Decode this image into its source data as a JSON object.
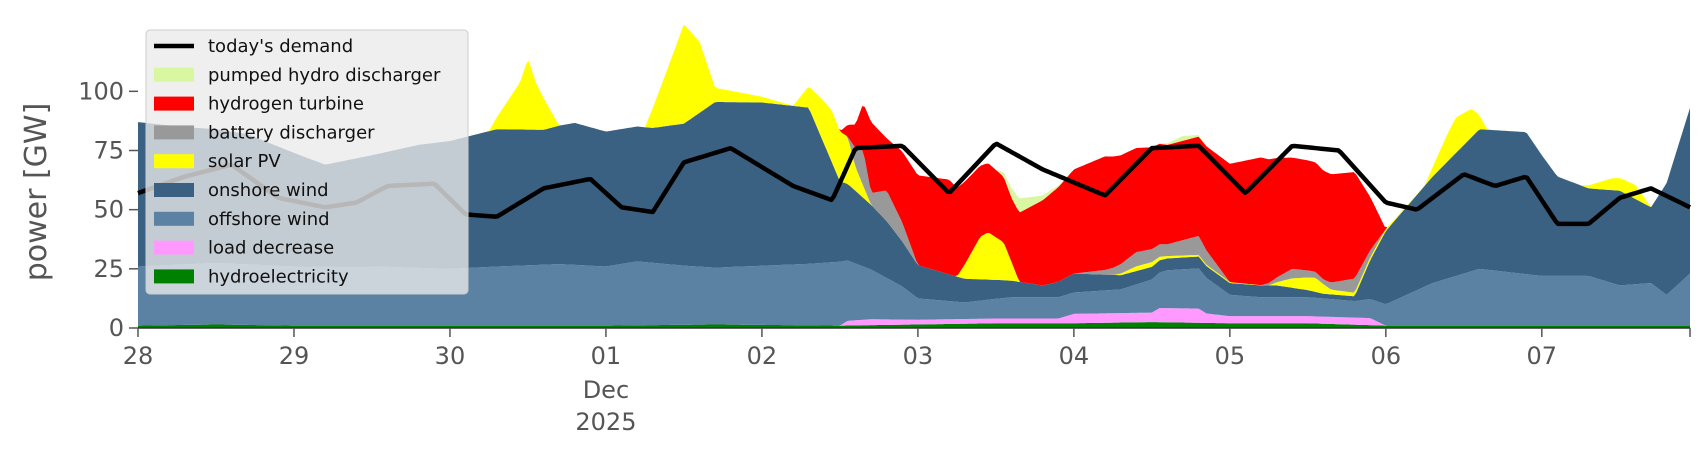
{
  "chart_data": {
    "type": "area",
    "ylabel": "power [GW]",
    "ylim": [
      0,
      120
    ],
    "yticks": [
      0,
      25,
      50,
      75,
      100
    ],
    "xlim": [
      0,
      9.95
    ],
    "xticks": [
      {
        "x": 0,
        "label": "28"
      },
      {
        "x": 1,
        "label": "29"
      },
      {
        "x": 2,
        "label": "30"
      },
      {
        "x": 3,
        "label": "01",
        "sub1": "Dec",
        "sub2": "2025"
      },
      {
        "x": 4,
        "label": "02"
      },
      {
        "x": 5,
        "label": "03"
      },
      {
        "x": 6,
        "label": "04"
      },
      {
        "x": 7,
        "label": "05"
      },
      {
        "x": 8,
        "label": "06"
      },
      {
        "x": 9,
        "label": "07"
      }
    ],
    "grid": false,
    "legend_position": "top-left",
    "legend": [
      {
        "label": "today's demand",
        "color": "#000000",
        "kind": "line"
      },
      {
        "label": "pumped hydro discharger",
        "color": "#d9f7a1",
        "kind": "patch"
      },
      {
        "label": "hydrogen turbine",
        "color": "#ff0000",
        "kind": "patch"
      },
      {
        "label": "battery discharger",
        "color": "#999999",
        "kind": "patch"
      },
      {
        "label": "solar PV",
        "color": "#ffff00",
        "kind": "patch"
      },
      {
        "label": "onshore wind",
        "color": "#3b6182",
        "kind": "patch"
      },
      {
        "label": "offshore wind",
        "color": "#5b82a3",
        "kind": "patch"
      },
      {
        "label": "load decrease",
        "color": "#ff99ff",
        "kind": "patch"
      },
      {
        "label": "hydroelectricity",
        "color": "#008000",
        "kind": "patch"
      }
    ],
    "stack_order": [
      "hydroelectricity",
      "load decrease",
      "offshore wind",
      "onshore wind",
      "solar PV",
      "battery discharger",
      "hydrogen turbine",
      "pumped hydro discharger"
    ],
    "series": [
      {
        "name": "hydroelectricity",
        "color": "#008000",
        "points": [
          [
            0,
            1
          ],
          [
            0.5,
            1.5
          ],
          [
            1,
            1
          ],
          [
            3,
            1
          ],
          [
            3.7,
            1.5
          ],
          [
            4.5,
            1
          ],
          [
            5,
            1.5
          ],
          [
            5.5,
            2
          ],
          [
            6,
            2
          ],
          [
            6.5,
            2.5
          ],
          [
            7,
            2
          ],
          [
            7.5,
            2
          ],
          [
            8,
            1
          ],
          [
            9,
            1
          ],
          [
            9.95,
            1
          ]
        ]
      },
      {
        "name": "load decrease",
        "color": "#ff99ff",
        "points": [
          [
            0,
            0
          ],
          [
            4.5,
            0
          ],
          [
            4.55,
            2
          ],
          [
            4.7,
            2.5
          ],
          [
            5,
            2
          ],
          [
            5.5,
            2
          ],
          [
            5.9,
            2
          ],
          [
            6,
            4
          ],
          [
            6.5,
            4
          ],
          [
            6.55,
            6
          ],
          [
            6.8,
            6
          ],
          [
            6.85,
            4
          ],
          [
            7,
            3
          ],
          [
            7.5,
            3
          ],
          [
            7.9,
            3
          ],
          [
            8,
            0
          ],
          [
            9.95,
            0
          ]
        ]
      },
      {
        "name": "offshore wind",
        "color": "#5b82a3",
        "points": [
          [
            0,
            25
          ],
          [
            0.5,
            26
          ],
          [
            1,
            25
          ],
          [
            1.5,
            25
          ],
          [
            2,
            24
          ],
          [
            2.3,
            25
          ],
          [
            2.7,
            26
          ],
          [
            3,
            25
          ],
          [
            3.2,
            27
          ],
          [
            3.5,
            25
          ],
          [
            3.7,
            24
          ],
          [
            4,
            25
          ],
          [
            4.3,
            26
          ],
          [
            4.5,
            27
          ],
          [
            4.7,
            21
          ],
          [
            4.9,
            14
          ],
          [
            5,
            9
          ],
          [
            5.3,
            7
          ],
          [
            5.6,
            9
          ],
          [
            5.8,
            9
          ],
          [
            6,
            9
          ],
          [
            6.3,
            10
          ],
          [
            6.6,
            16
          ],
          [
            6.8,
            17
          ],
          [
            7,
            9
          ],
          [
            7.2,
            8
          ],
          [
            7.5,
            8
          ],
          [
            7.8,
            7
          ],
          [
            8,
            9
          ],
          [
            8.3,
            18
          ],
          [
            8.6,
            24
          ],
          [
            9,
            21
          ],
          [
            9.3,
            21
          ],
          [
            9.5,
            17
          ],
          [
            9.7,
            18
          ],
          [
            9.8,
            13
          ],
          [
            9.95,
            22
          ]
        ]
      },
      {
        "name": "onshore wind",
        "color": "#3b6182",
        "points": [
          [
            0,
            61
          ],
          [
            0.3,
            58
          ],
          [
            0.7,
            55
          ],
          [
            1,
            48
          ],
          [
            1.2,
            43
          ],
          [
            1.5,
            47
          ],
          [
            1.8,
            52
          ],
          [
            2,
            54
          ],
          [
            2.3,
            58
          ],
          [
            2.6,
            57
          ],
          [
            2.8,
            60
          ],
          [
            3,
            57
          ],
          [
            3.3,
            57
          ],
          [
            3.5,
            60
          ],
          [
            3.7,
            70
          ],
          [
            4,
            69
          ],
          [
            4.3,
            66
          ],
          [
            4.5,
            34
          ],
          [
            4.8,
            24
          ],
          [
            5,
            14
          ],
          [
            5.3,
            10
          ],
          [
            5.5,
            8
          ],
          [
            5.8,
            5
          ],
          [
            6,
            8
          ],
          [
            6.3,
            6
          ],
          [
            6.6,
            5
          ],
          [
            6.8,
            5
          ],
          [
            7,
            5
          ],
          [
            7.3,
            5
          ],
          [
            7.6,
            2
          ],
          [
            7.8,
            2
          ],
          [
            8,
            31
          ],
          [
            8.3,
            45
          ],
          [
            8.6,
            59
          ],
          [
            8.9,
            60
          ],
          [
            9.1,
            42
          ],
          [
            9.3,
            37
          ],
          [
            9.5,
            40
          ],
          [
            9.7,
            32
          ],
          [
            9.95,
            70
          ]
        ]
      },
      {
        "name": "solar PV",
        "color": "#ffff00",
        "points": [
          [
            0,
            0
          ],
          [
            2.25,
            0
          ],
          [
            2.45,
            20
          ],
          [
            2.5,
            30
          ],
          [
            2.55,
            20
          ],
          [
            2.7,
            0
          ],
          [
            3.25,
            0
          ],
          [
            3.4,
            25
          ],
          [
            3.5,
            42
          ],
          [
            3.6,
            30
          ],
          [
            3.7,
            6
          ],
          [
            4.2,
            0
          ],
          [
            4.4,
            18
          ],
          [
            4.45,
            22
          ],
          [
            4.55,
            20
          ],
          [
            4.6,
            10
          ],
          [
            4.7,
            0
          ],
          [
            5.25,
            0
          ],
          [
            5.4,
            18
          ],
          [
            5.45,
            20
          ],
          [
            5.55,
            16
          ],
          [
            5.65,
            0
          ],
          [
            6.25,
            0
          ],
          [
            6.4,
            2
          ],
          [
            6.5,
            2
          ],
          [
            6.6,
            1
          ],
          [
            7.25,
            0
          ],
          [
            7.4,
            4
          ],
          [
            7.55,
            6
          ],
          [
            7.65,
            2
          ],
          [
            8.25,
            0
          ],
          [
            8.4,
            12
          ],
          [
            8.45,
            15
          ],
          [
            8.55,
            12
          ],
          [
            8.65,
            0
          ],
          [
            9.25,
            0
          ],
          [
            9.45,
            5
          ],
          [
            9.6,
            6
          ],
          [
            9.7,
            0
          ],
          [
            9.95,
            0
          ]
        ]
      },
      {
        "name": "battery discharger",
        "color": "#999999",
        "points": [
          [
            0,
            0
          ],
          [
            4.55,
            0
          ],
          [
            4.6,
            8
          ],
          [
            4.65,
            15
          ],
          [
            4.7,
            5
          ],
          [
            4.8,
            13
          ],
          [
            4.9,
            8
          ],
          [
            5,
            0
          ],
          [
            5.3,
            0
          ],
          [
            5.6,
            0
          ],
          [
            6,
            0
          ],
          [
            6.2,
            2
          ],
          [
            6.4,
            6
          ],
          [
            6.6,
            5
          ],
          [
            6.8,
            8
          ],
          [
            7,
            0
          ],
          [
            7.2,
            0
          ],
          [
            7.4,
            4
          ],
          [
            7.6,
            2
          ],
          [
            7.8,
            6
          ],
          [
            8,
            0
          ],
          [
            9.95,
            0
          ]
        ]
      },
      {
        "name": "hydrogen turbine",
        "color": "#ff0000",
        "points": [
          [
            0,
            0
          ],
          [
            4.5,
            0
          ],
          [
            4.6,
            10
          ],
          [
            4.7,
            30
          ],
          [
            4.8,
            22
          ],
          [
            5,
            38
          ],
          [
            5.2,
            40
          ],
          [
            5.4,
            30
          ],
          [
            5.6,
            27
          ],
          [
            5.8,
            36
          ],
          [
            6,
            44
          ],
          [
            6.2,
            48
          ],
          [
            6.4,
            44
          ],
          [
            6.6,
            42
          ],
          [
            6.8,
            42
          ],
          [
            7,
            50
          ],
          [
            7.2,
            54
          ],
          [
            7.4,
            47
          ],
          [
            7.6,
            46
          ],
          [
            7.8,
            45
          ],
          [
            8,
            0
          ],
          [
            9.95,
            0
          ]
        ]
      },
      {
        "name": "pumped hydro discharger",
        "color": "#d9f7a1",
        "points": [
          [
            0,
            0
          ],
          [
            5.5,
            0
          ],
          [
            5.65,
            6
          ],
          [
            5.8,
            2
          ],
          [
            5.95,
            0
          ],
          [
            6.55,
            0
          ],
          [
            6.7,
            2
          ],
          [
            6.85,
            0
          ],
          [
            9.95,
            0
          ]
        ]
      },
      {
        "name": "today's demand",
        "color": "#000000",
        "type": "line",
        "points": [
          [
            0,
            57
          ],
          [
            0.3,
            64
          ],
          [
            0.6,
            69
          ],
          [
            0.9,
            55
          ],
          [
            1.2,
            51
          ],
          [
            1.4,
            53
          ],
          [
            1.6,
            60
          ],
          [
            1.9,
            61
          ],
          [
            2.1,
            48
          ],
          [
            2.3,
            47
          ],
          [
            2.6,
            59
          ],
          [
            2.9,
            63
          ],
          [
            3.1,
            51
          ],
          [
            3.3,
            49
          ],
          [
            3.5,
            70
          ],
          [
            3.8,
            76
          ],
          [
            4.2,
            60
          ],
          [
            4.45,
            54
          ],
          [
            4.6,
            76
          ],
          [
            4.9,
            77
          ],
          [
            5.2,
            57
          ],
          [
            5.5,
            78
          ],
          [
            5.8,
            67
          ],
          [
            6.2,
            56
          ],
          [
            6.5,
            76
          ],
          [
            6.8,
            77
          ],
          [
            7.1,
            57
          ],
          [
            7.4,
            77
          ],
          [
            7.7,
            75
          ],
          [
            8.0,
            53
          ],
          [
            8.2,
            50
          ],
          [
            8.5,
            65
          ],
          [
            8.7,
            60
          ],
          [
            8.9,
            64
          ],
          [
            9.1,
            44
          ],
          [
            9.3,
            44
          ],
          [
            9.5,
            55
          ],
          [
            9.7,
            59
          ],
          [
            9.95,
            51
          ]
        ]
      }
    ]
  }
}
